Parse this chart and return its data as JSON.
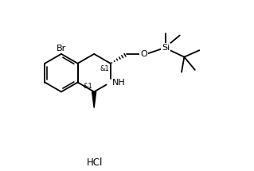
{
  "bg": "#ffffff",
  "lc": "#000000",
  "lw": 1.3,
  "fs": 8.0,
  "fs_stereo": 6.0,
  "bl": 0.85,
  "bcx": 1.7,
  "bcy": 3.6,
  "labels": {
    "Br": "Br",
    "NH": "NH",
    "O": "O",
    "Si": "Si",
    "stereo": "&1",
    "HCl": "HCl"
  }
}
